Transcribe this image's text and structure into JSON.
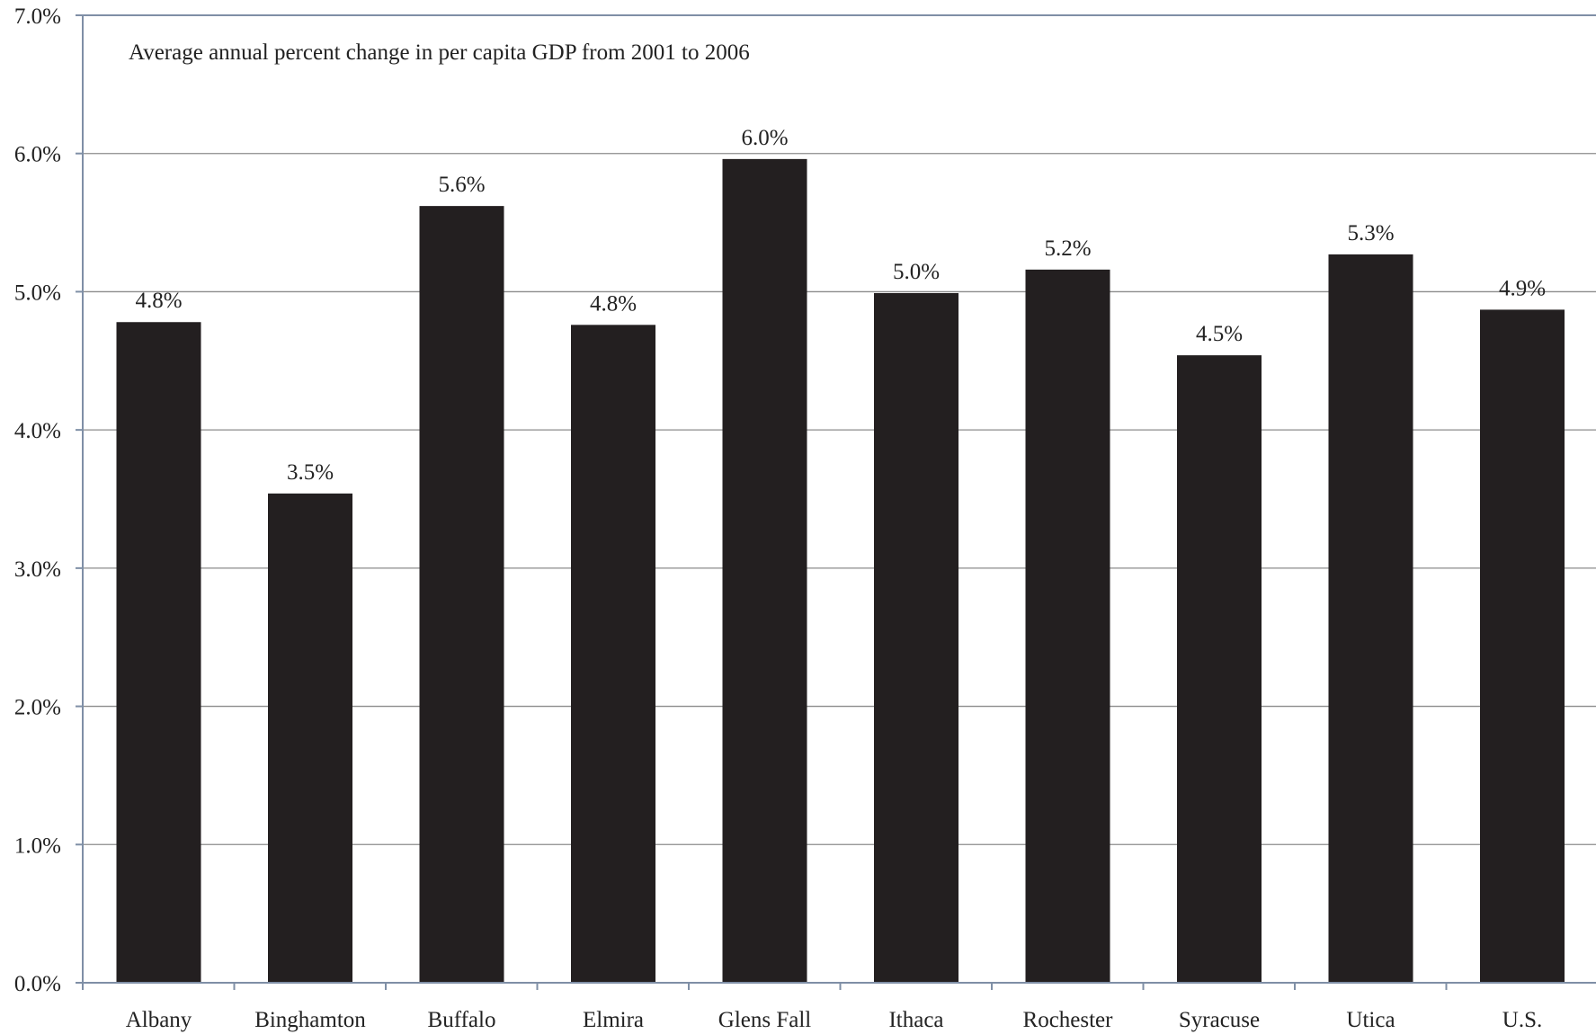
{
  "chart_data": {
    "type": "bar",
    "title": "Average annual percent change in per capita GDP from 2001 to 2006",
    "xlabel": "",
    "ylabel": "",
    "categories": [
      "Albany",
      "Binghamton",
      "Buffalo",
      "Elmira",
      "Glens Fall",
      "Ithaca",
      "Rochester",
      "Syracuse",
      "Utica",
      "U.S."
    ],
    "values": [
      4.78,
      3.54,
      5.62,
      4.76,
      5.96,
      4.99,
      5.16,
      4.54,
      5.27,
      4.87
    ],
    "data_labels": [
      "4.8%",
      "3.5%",
      "5.6%",
      "4.8%",
      "6.0%",
      "5.0%",
      "5.2%",
      "4.5%",
      "5.3%",
      "4.9%"
    ],
    "ylim": [
      0,
      7
    ],
    "y_ticks": [
      0,
      1,
      2,
      3,
      4,
      5,
      6,
      7
    ],
    "y_tick_labels": [
      "0.0%",
      "1.0%",
      "2.0%",
      "3.0%",
      "4.0%",
      "5.0%",
      "6.0%",
      "7.0%"
    ],
    "grid": true,
    "legend": "none",
    "colors": {
      "bar": "#231f20",
      "grid": "#8c8c8c",
      "axis": "#7f8fa6",
      "text": "#222222"
    }
  }
}
